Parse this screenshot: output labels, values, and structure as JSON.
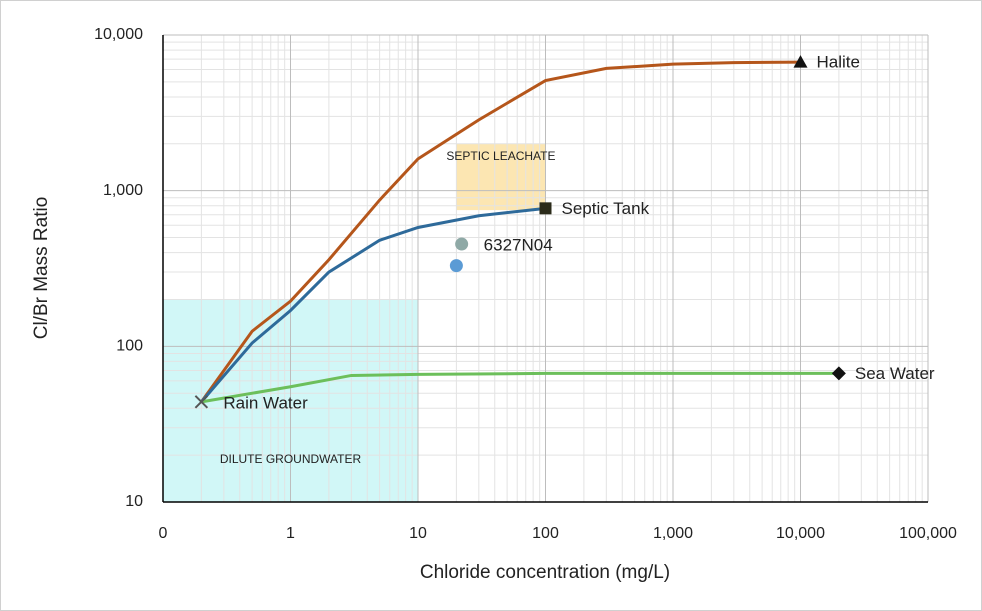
{
  "chart_data": {
    "type": "line",
    "x_label": "Chloride concentration (mg/L)",
    "y_label": "Cl/Br Mass Ratio",
    "xscale": "log",
    "yscale": "log",
    "xlim": [
      0.1,
      100000
    ],
    "ylim": [
      10,
      10000
    ],
    "xticks": [
      {
        "value": 0.1,
        "label": "0"
      },
      1,
      10,
      100,
      {
        "value": 1000,
        "label": "1,000"
      },
      {
        "value": 10000,
        "label": "10,000"
      },
      {
        "value": 100000,
        "label": "100,000"
      }
    ],
    "yticks": [
      10,
      100,
      {
        "value": 1000,
        "label": "1,000"
      },
      {
        "value": 10000,
        "label": "10,000"
      }
    ],
    "grid": true,
    "minor_grid": true,
    "regions": [
      {
        "label": "SEPTIC LEACHATE",
        "x": [
          20,
          100
        ],
        "y": [
          750,
          2000
        ],
        "color": "#fbe2a4",
        "label_at": "top"
      },
      {
        "label": "DILUTE GROUNDWATER",
        "x": [
          0.1,
          10
        ],
        "y": [
          10,
          200
        ],
        "color": "#c9f6f6",
        "label_at": "bottom"
      }
    ],
    "series": [
      {
        "name": "Halite",
        "color": "#b5561b",
        "marker": "triangle",
        "x": [
          0.2,
          0.5,
          1,
          2,
          5,
          10,
          30,
          100,
          300,
          1000,
          3000,
          10000
        ],
        "values": [
          44,
          125,
          195,
          360,
          870,
          1600,
          2850,
          5100,
          6100,
          6500,
          6650,
          6700
        ]
      },
      {
        "name": "Septic Tank",
        "color": "#2e6a9a",
        "marker": "square",
        "x": [
          0.2,
          0.5,
          1,
          2,
          5,
          10,
          30,
          100
        ],
        "values": [
          44,
          105,
          170,
          300,
          480,
          580,
          690,
          770
        ]
      },
      {
        "name": "Sea Water",
        "color": "#6cbf5b",
        "marker": "diamond",
        "x": [
          0.2,
          1,
          3,
          10,
          100,
          1000,
          10000,
          20000
        ],
        "values": [
          44,
          55,
          65,
          66,
          67,
          67,
          67,
          67
        ]
      }
    ],
    "points": [
      {
        "label": "Rain Water",
        "x": 0.2,
        "y": 44,
        "color": "#555555",
        "marker": "x"
      },
      {
        "label": "6327N04",
        "x": 22,
        "y": 454,
        "color": "#8fa9a6",
        "marker": "circle"
      },
      {
        "x": 20,
        "y": 330,
        "color": "#5b9bd5",
        "marker": "circle"
      }
    ]
  }
}
